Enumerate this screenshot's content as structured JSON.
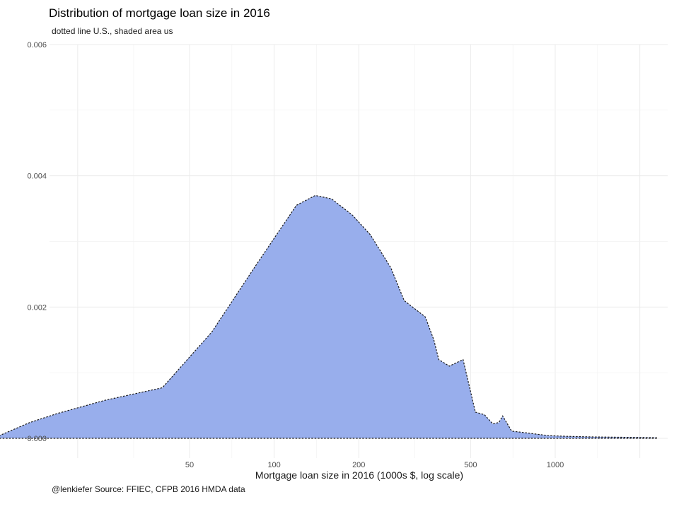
{
  "chart_data": {
    "type": "area",
    "title": "Distribution of mortgage loan size in 2016",
    "subtitle": "dotted line U.S., shaded area us",
    "caption": "@lenkiefer Source: FFIEC, CFPB 2016 HMDA data",
    "xlabel": "Mortgage loan size in 2016 (1000s $, log scale)",
    "ylabel": "",
    "x_scale": "log10",
    "xlim": [
      10,
      2500
    ],
    "ylim": [
      0,
      0.006
    ],
    "x_ticks": [
      50,
      100,
      200,
      500,
      1000
    ],
    "x_tick_labels": [
      "50",
      "100",
      "200",
      "500",
      "1000"
    ],
    "y_ticks": [
      0,
      0.002,
      0.004,
      0.006
    ],
    "y_tick_labels": [
      "0.000",
      "0.002",
      "0.004",
      "0.006"
    ],
    "grid": true,
    "colors": {
      "fill": "#98aeec",
      "line": "#1a1a1a"
    },
    "series": [
      {
        "x": [
          10,
          13.5,
          17,
          25,
          40,
          60,
          85,
          120,
          140,
          160,
          190,
          220,
          260,
          290,
          345,
          370,
          385,
          420,
          470,
          520,
          560,
          600,
          630,
          650,
          700,
          800,
          950,
          1100,
          1400,
          1800,
          2300
        ],
        "y": [
          0,
          0.00024,
          0.00038,
          0.00058,
          0.00077,
          0.00162,
          0.0026,
          0.00355,
          0.0037,
          0.00365,
          0.0034,
          0.0031,
          0.0026,
          0.0021,
          0.00185,
          0.0015,
          0.0012,
          0.0011,
          0.0012,
          0.0004,
          0.00036,
          0.00022,
          0.00024,
          0.00034,
          0.00011,
          8e-05,
          4e-05,
          3e-05,
          2e-05,
          1.5e-05,
          1e-05
        ]
      }
    ]
  }
}
